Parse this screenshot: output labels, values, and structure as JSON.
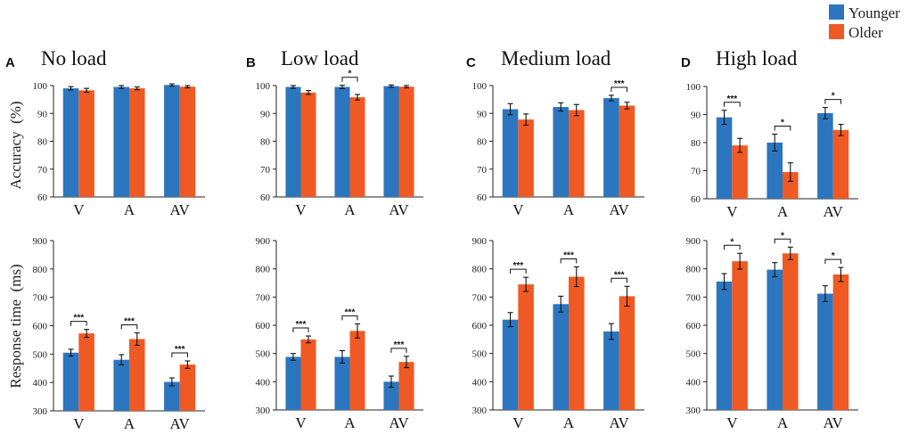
{
  "legend": {
    "entries": [
      {
        "label": "Younger",
        "color": "#2c76c0"
      },
      {
        "label": "Older",
        "color": "#ef5a24"
      }
    ]
  },
  "colors": {
    "younger": "#2c76c0",
    "older": "#ef5a24",
    "axis": "#222222"
  },
  "row_labels": {
    "accuracy": "Accuracy  (%)",
    "rt": "Response time  (ms)"
  },
  "chart_data": [
    {
      "panel": "A",
      "title": "No load",
      "metric": "accuracy",
      "type": "bar",
      "categories": [
        "V",
        "A",
        "AV"
      ],
      "ylim": [
        60,
        100
      ],
      "yticks": [
        60,
        70,
        80,
        90,
        100
      ],
      "series": [
        {
          "name": "Younger",
          "values": [
            99,
            99.5,
            100.2
          ],
          "errors": [
            0.6,
            0.5,
            0.4
          ]
        },
        {
          "name": "Older",
          "values": [
            98.3,
            99,
            99.6
          ],
          "errors": [
            0.7,
            0.5,
            0.4
          ]
        }
      ],
      "significance": [
        "",
        "",
        ""
      ]
    },
    {
      "panel": "B",
      "title": "Low load",
      "metric": "accuracy",
      "type": "bar",
      "categories": [
        "V",
        "A",
        "AV"
      ],
      "ylim": [
        60,
        100
      ],
      "yticks": [
        60,
        70,
        80,
        90,
        100
      ],
      "series": [
        {
          "name": "Younger",
          "values": [
            99.5,
            99.5,
            99.8
          ],
          "errors": [
            0.5,
            0.6,
            0.4
          ]
        },
        {
          "name": "Older",
          "values": [
            97.5,
            95.8,
            99.6
          ],
          "errors": [
            0.7,
            1,
            0.4
          ]
        }
      ],
      "significance": [
        "",
        "*",
        ""
      ]
    },
    {
      "panel": "C",
      "title": "Medium load",
      "metric": "accuracy",
      "type": "bar",
      "categories": [
        "V",
        "A",
        "AV"
      ],
      "ylim": [
        60,
        100
      ],
      "yticks": [
        60,
        70,
        80,
        90,
        100
      ],
      "series": [
        {
          "name": "Younger",
          "values": [
            91.5,
            92.3,
            95.5
          ],
          "errors": [
            2,
            1.5,
            1
          ]
        },
        {
          "name": "Older",
          "values": [
            87.8,
            91.2,
            92.8
          ],
          "errors": [
            2,
            2,
            1.2
          ]
        }
      ],
      "significance": [
        "",
        "",
        "***"
      ]
    },
    {
      "panel": "D",
      "title": "High load",
      "metric": "accuracy",
      "type": "bar",
      "categories": [
        "V",
        "A",
        "AV"
      ],
      "ylim": [
        60,
        100
      ],
      "yticks": [
        60,
        70,
        80,
        90,
        100
      ],
      "series": [
        {
          "name": "Younger",
          "values": [
            89,
            80,
            90.5
          ],
          "errors": [
            2.5,
            3,
            2
          ]
        },
        {
          "name": "Older",
          "values": [
            79,
            69.5,
            84.5
          ],
          "errors": [
            2.5,
            3.3,
            2
          ]
        }
      ],
      "significance": [
        "***",
        "*",
        "*"
      ]
    },
    {
      "panel": "A",
      "title": "",
      "metric": "rt",
      "type": "bar",
      "categories": [
        "V",
        "A",
        "AV"
      ],
      "ylim": [
        300,
        900
      ],
      "yticks": [
        300,
        400,
        500,
        600,
        700,
        800,
        900
      ],
      "series": [
        {
          "name": "Younger",
          "values": [
            505,
            480,
            402
          ],
          "errors": [
            12,
            18,
            14
          ]
        },
        {
          "name": "Older",
          "values": [
            573,
            553,
            463
          ],
          "errors": [
            14,
            22,
            13
          ]
        }
      ],
      "significance": [
        "***",
        "***",
        "***"
      ]
    },
    {
      "panel": "B",
      "title": "",
      "metric": "rt",
      "type": "bar",
      "categories": [
        "V",
        "A",
        "AV"
      ],
      "ylim": [
        300,
        900
      ],
      "yticks": [
        300,
        400,
        500,
        600,
        700,
        800,
        900
      ],
      "series": [
        {
          "name": "Younger",
          "values": [
            488,
            488,
            400
          ],
          "errors": [
            12,
            22,
            20
          ]
        },
        {
          "name": "Older",
          "values": [
            550,
            580,
            470
          ],
          "errors": [
            12,
            25,
            20
          ]
        }
      ],
      "significance": [
        "***",
        "***",
        "***"
      ]
    },
    {
      "panel": "C",
      "title": "",
      "metric": "rt",
      "type": "bar",
      "categories": [
        "V",
        "A",
        "AV"
      ],
      "ylim": [
        300,
        900
      ],
      "yticks": [
        300,
        400,
        500,
        600,
        700,
        800,
        900
      ],
      "series": [
        {
          "name": "Younger",
          "values": [
            620,
            675,
            578
          ],
          "errors": [
            25,
            28,
            28
          ]
        },
        {
          "name": "Older",
          "values": [
            745,
            772,
            703
          ],
          "errors": [
            25,
            35,
            35
          ]
        }
      ],
      "significance": [
        "***",
        "***",
        "***"
      ]
    },
    {
      "panel": "D",
      "title": "",
      "metric": "rt",
      "type": "bar",
      "categories": [
        "V",
        "A",
        "AV"
      ],
      "ylim": [
        300,
        900
      ],
      "yticks": [
        300,
        400,
        500,
        600,
        700,
        800,
        900
      ],
      "series": [
        {
          "name": "Younger",
          "values": [
            755,
            797,
            712
          ],
          "errors": [
            28,
            25,
            28
          ]
        },
        {
          "name": "Older",
          "values": [
            827,
            855,
            780
          ],
          "errors": [
            28,
            22,
            25
          ]
        }
      ],
      "significance": [
        "*",
        "*",
        "*"
      ]
    }
  ]
}
